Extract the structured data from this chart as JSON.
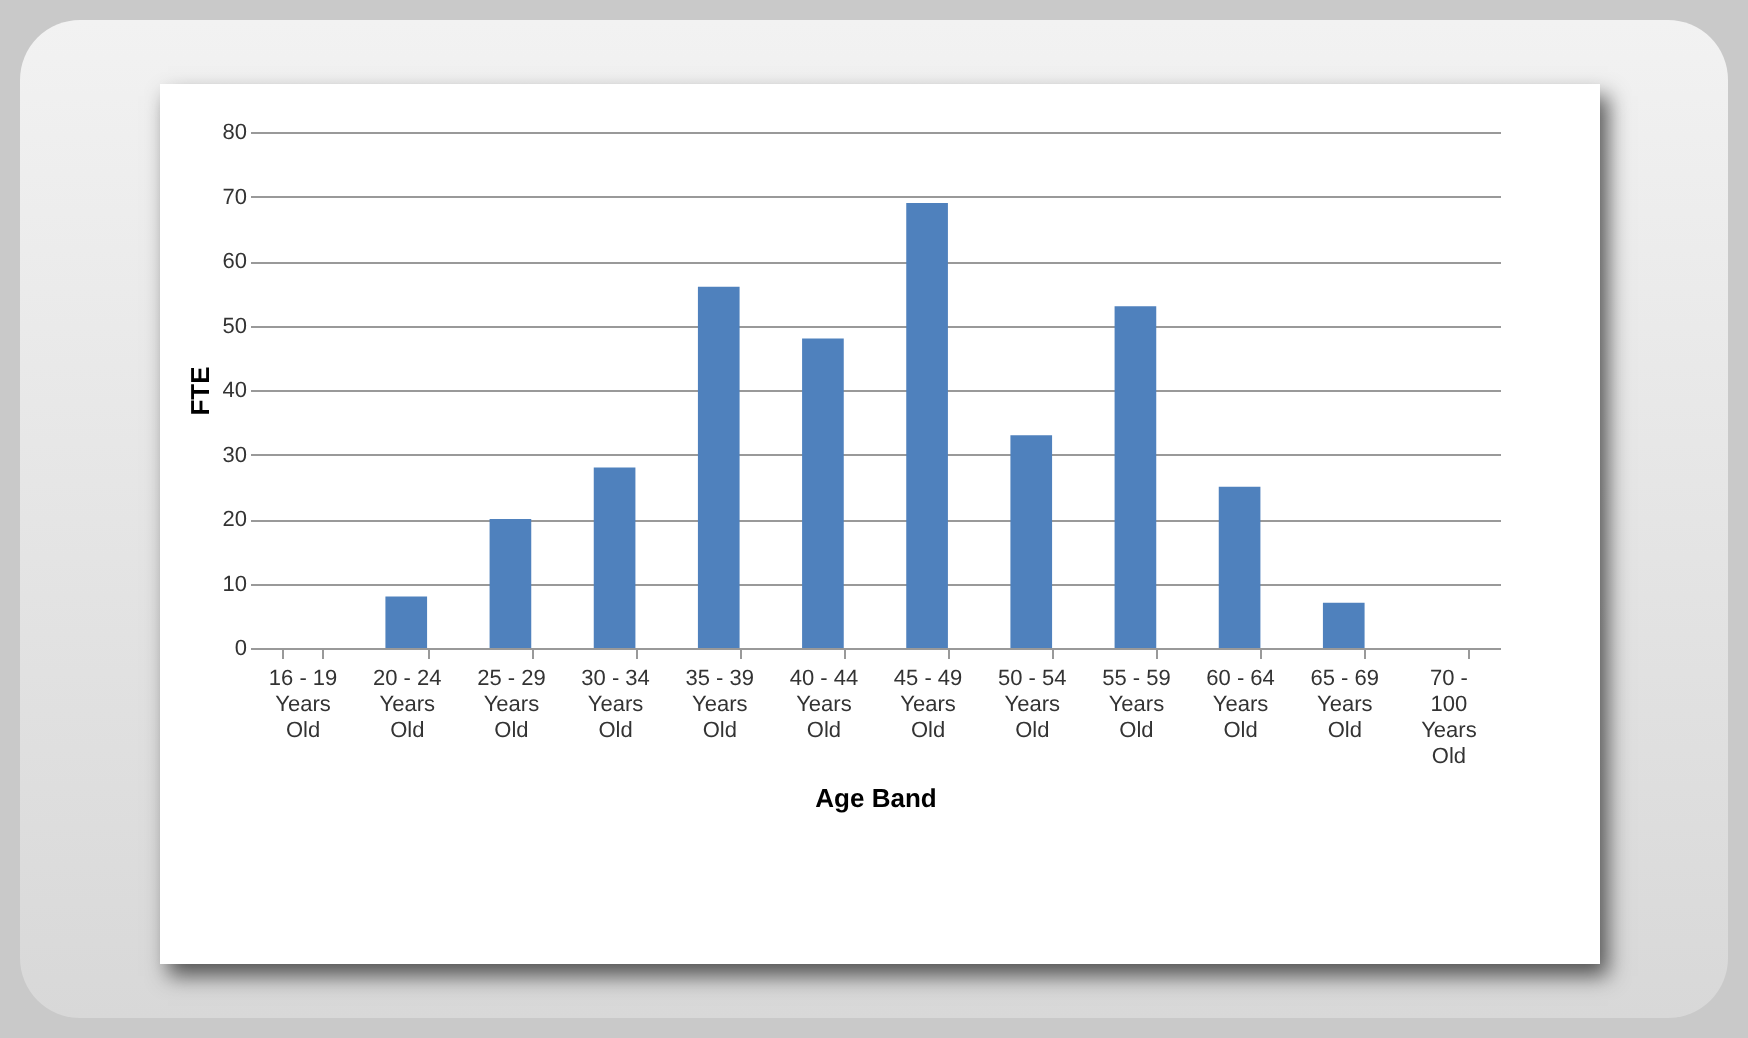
{
  "chart_data": {
    "type": "bar",
    "xlabel": "Age Band",
    "ylabel": "FTE",
    "categories": [
      "16 - 19 Years Old",
      "20 - 24 Years Old",
      "25 - 29 Years Old",
      "30 - 34 Years Old",
      "35 - 39 Years Old",
      "40 - 44 Years Old",
      "45 - 49 Years Old",
      "50 - 54 Years Old",
      "55 - 59 Years Old",
      "60 - 64 Years Old",
      "65 - 69 Years Old",
      "70 - 100 Years Old"
    ],
    "values": [
      0,
      8,
      20,
      28,
      56,
      48,
      69,
      33,
      53,
      25,
      7,
      0
    ],
    "color": "#4f81bd",
    "ylim": [
      0,
      80
    ],
    "yticks": [
      0,
      10,
      20,
      30,
      40,
      50,
      60,
      70,
      80
    ],
    "grid": "y"
  }
}
